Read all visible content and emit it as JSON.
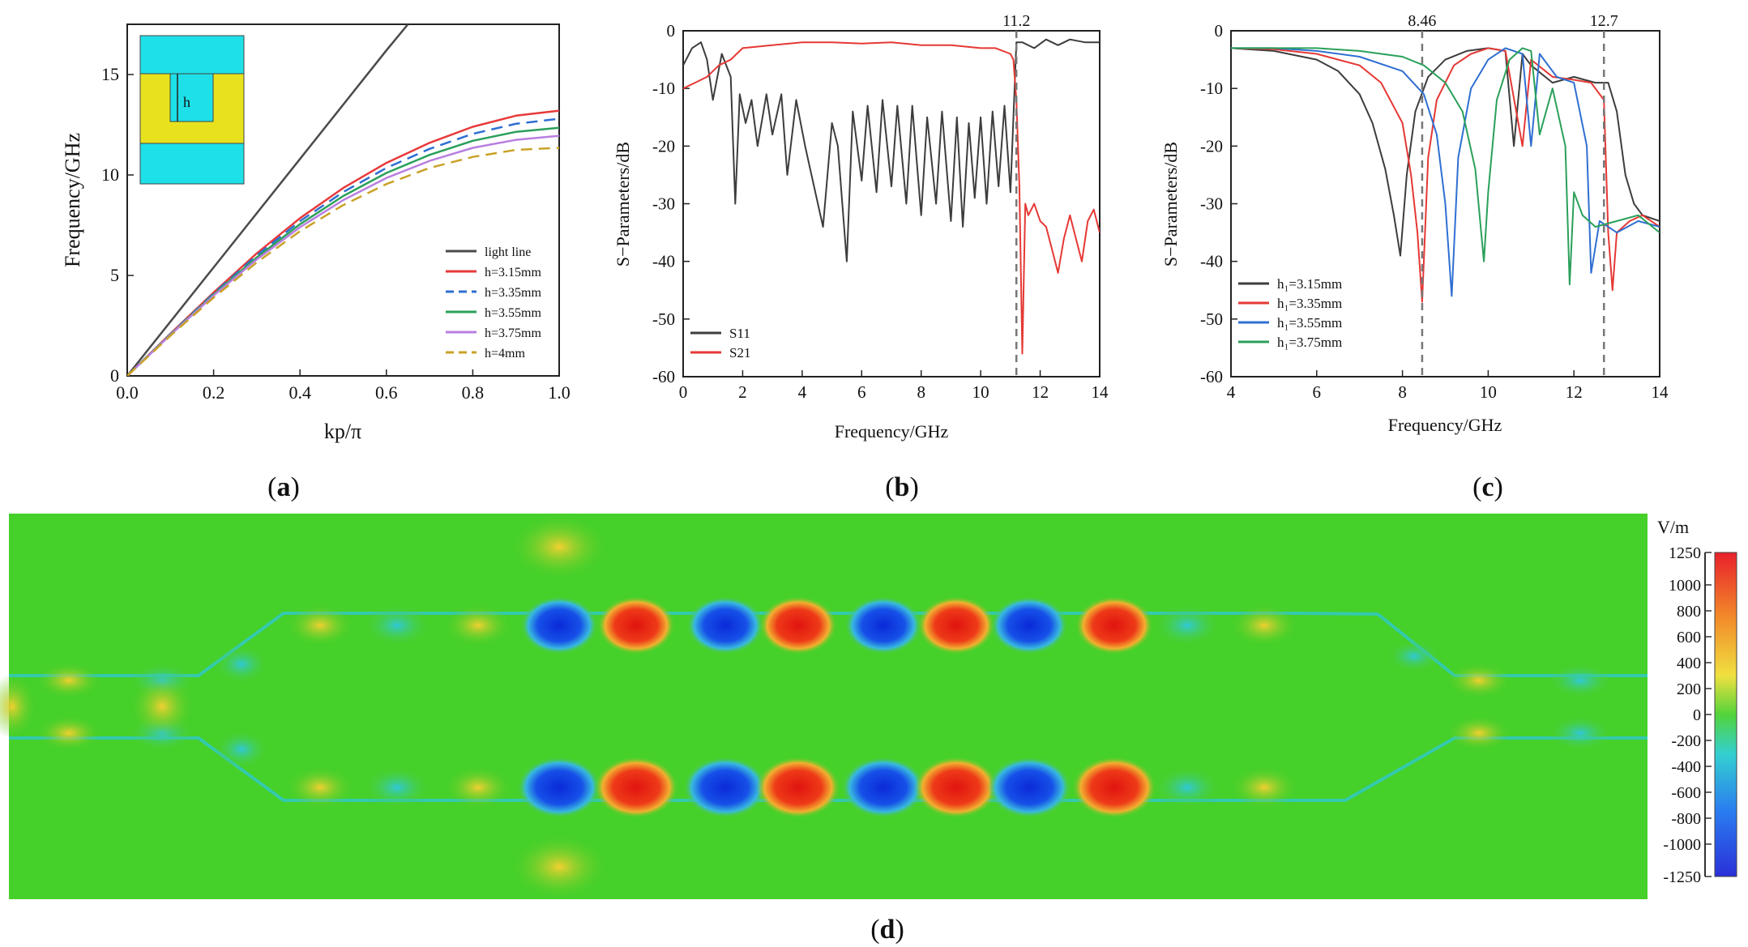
{
  "panel_labels": {
    "a": "a",
    "b": "b",
    "c": "c",
    "d": "d"
  },
  "colors": {
    "light_line": "#4a4a4a",
    "h315": "#e8393a",
    "h335": "#2f6fd1",
    "h355": "#2aa05a",
    "h375": "#b87fe0",
    "h4": "#c9a227",
    "s11": "#3d3d3d",
    "s21": "#e53935",
    "field_bg": "#3fcf2a",
    "inset_cyan": "#1ee0e8",
    "inset_yellow": "#e8e21e"
  },
  "chart_data": [
    {
      "type": "line",
      "panel": "a",
      "xlabel": "kp/π",
      "ylabel": "Frequency/GHz",
      "xlim": [
        0,
        1.0
      ],
      "ylim": [
        0,
        17.5
      ],
      "xticks": [
        "0.0",
        "0.2",
        "0.4",
        "0.6",
        "0.8",
        "1.0"
      ],
      "yticks": [
        "0",
        "5",
        "10",
        "15"
      ],
      "legend_position": "bottom-right",
      "inset_label": "h",
      "series": [
        {
          "name": "light line",
          "style": "solid",
          "x": [
            0,
            0.2,
            0.4,
            0.6,
            0.65
          ],
          "y": [
            0,
            5.4,
            10.8,
            16.2,
            17.5
          ]
        },
        {
          "name": "h=3.15mm",
          "style": "solid",
          "x": [
            0,
            0.1,
            0.2,
            0.3,
            0.4,
            0.5,
            0.6,
            0.7,
            0.8,
            0.9,
            1.0
          ],
          "y": [
            0,
            2.1,
            4.15,
            6.1,
            7.85,
            9.35,
            10.6,
            11.6,
            12.4,
            12.95,
            13.2
          ]
        },
        {
          "name": "h=3.35mm",
          "style": "dashed",
          "x": [
            0,
            0.1,
            0.2,
            0.3,
            0.4,
            0.5,
            0.6,
            0.7,
            0.8,
            0.9,
            1.0
          ],
          "y": [
            0,
            2.08,
            4.1,
            6.0,
            7.7,
            9.15,
            10.35,
            11.3,
            12.05,
            12.55,
            12.8
          ]
        },
        {
          "name": "h=3.55mm",
          "style": "solid",
          "x": [
            0,
            0.1,
            0.2,
            0.3,
            0.4,
            0.5,
            0.6,
            0.7,
            0.8,
            0.9,
            1.0
          ],
          "y": [
            0,
            2.06,
            4.05,
            5.9,
            7.55,
            8.95,
            10.1,
            11.0,
            11.7,
            12.15,
            12.35
          ]
        },
        {
          "name": "h=3.75mm",
          "style": "solid",
          "x": [
            0,
            0.1,
            0.2,
            0.3,
            0.4,
            0.5,
            0.6,
            0.7,
            0.8,
            0.9,
            1.0
          ],
          "y": [
            0,
            2.04,
            4.0,
            5.8,
            7.4,
            8.75,
            9.85,
            10.7,
            11.35,
            11.75,
            11.95
          ]
        },
        {
          "name": "h=4mm",
          "style": "dashed",
          "x": [
            0,
            0.1,
            0.2,
            0.3,
            0.4,
            0.5,
            0.6,
            0.7,
            0.8,
            0.9,
            1.0
          ],
          "y": [
            0,
            2.0,
            3.9,
            5.65,
            7.2,
            8.5,
            9.55,
            10.35,
            10.9,
            11.25,
            11.35
          ]
        }
      ]
    },
    {
      "type": "line",
      "panel": "b",
      "xlabel": "Frequency/GHz",
      "ylabel": "S−Parameters/dB",
      "xlim": [
        0,
        14
      ],
      "ylim": [
        -60,
        0
      ],
      "xticks": [
        "0",
        "2",
        "4",
        "6",
        "8",
        "10",
        "12",
        "14"
      ],
      "yticks": [
        "0",
        "-10",
        "-20",
        "-30",
        "-40",
        "-50",
        "-60"
      ],
      "vline": {
        "x": 11.2,
        "label": "11.2"
      },
      "legend_position": "bottom-left",
      "series": [
        {
          "name": "S11",
          "x": [
            0,
            0.3,
            0.6,
            0.8,
            1.0,
            1.3,
            1.6,
            1.75,
            1.9,
            2.1,
            2.3,
            2.5,
            2.8,
            3.0,
            3.3,
            3.5,
            3.8,
            4.1,
            4.4,
            4.7,
            5.0,
            5.2,
            5.5,
            5.7,
            6.0,
            6.2,
            6.5,
            6.7,
            7.0,
            7.2,
            7.5,
            7.7,
            8.0,
            8.2,
            8.5,
            8.7,
            9.0,
            9.2,
            9.4,
            9.6,
            9.8,
            10.0,
            10.2,
            10.4,
            10.6,
            10.8,
            11.0,
            11.2,
            11.4,
            11.8,
            12.2,
            12.6,
            13.0,
            13.5,
            14.0
          ],
          "y": [
            -6,
            -3,
            -2,
            -5,
            -12,
            -4,
            -8,
            -30,
            -11,
            -16,
            -12,
            -20,
            -11,
            -18,
            -11,
            -25,
            -12,
            -20,
            -27,
            -34,
            -16,
            -20,
            -40,
            -14,
            -26,
            -13,
            -28,
            -12,
            -27,
            -13,
            -30,
            -13,
            -32,
            -15,
            -30,
            -14,
            -33,
            -15,
            -34,
            -16,
            -29,
            -15,
            -30,
            -14,
            -27,
            -13,
            -28,
            -2,
            -2,
            -3,
            -1.5,
            -2.5,
            -1.5,
            -2,
            -2
          ]
        },
        {
          "name": "S21",
          "x": [
            0,
            0.4,
            0.8,
            1.2,
            1.6,
            2.0,
            3.0,
            4.0,
            5.0,
            6.0,
            7.0,
            8.0,
            9.0,
            10.0,
            10.5,
            11.0,
            11.1,
            11.2,
            11.3,
            11.4,
            11.5,
            11.6,
            11.8,
            12.0,
            12.2,
            12.4,
            12.6,
            12.8,
            13.0,
            13.2,
            13.4,
            13.6,
            13.8,
            14.0
          ],
          "y": [
            -10,
            -9,
            -8,
            -6,
            -5,
            -3,
            -2.5,
            -2,
            -2,
            -2.2,
            -2,
            -2.5,
            -2.5,
            -3,
            -3,
            -4,
            -5,
            -12,
            -27,
            -56,
            -30,
            -32,
            -30,
            -33,
            -34,
            -38,
            -42,
            -36,
            -32,
            -36,
            -40,
            -33,
            -31,
            -35
          ]
        }
      ]
    },
    {
      "type": "line",
      "panel": "c",
      "xlabel": "Frequency/GHz",
      "ylabel": "S−Parameters/dB",
      "xlim": [
        4,
        14
      ],
      "ylim": [
        -60,
        0
      ],
      "xticks": [
        "4",
        "6",
        "8",
        "10",
        "12",
        "14"
      ],
      "yticks": [
        "0",
        "-10",
        "-20",
        "-30",
        "-40",
        "-50",
        "-60"
      ],
      "vlines": [
        {
          "x": 8.46,
          "label": "8.46"
        },
        {
          "x": 12.7,
          "label": "12.7"
        }
      ],
      "legend_position": "bottom-left",
      "series": [
        {
          "name": "h₁=3.15mm",
          "x": [
            4,
            5,
            6,
            6.5,
            7,
            7.3,
            7.6,
            7.8,
            7.95,
            8.1,
            8.3,
            8.6,
            9.0,
            9.5,
            10.0,
            10.4,
            10.6,
            10.8,
            11.0,
            11.5,
            12.0,
            12.5,
            12.8,
            13.0,
            13.2,
            13.4,
            13.6,
            14.0
          ],
          "y": [
            -3,
            -3.5,
            -5,
            -7,
            -11,
            -16,
            -24,
            -32,
            -39,
            -25,
            -14,
            -8,
            -5,
            -3.5,
            -3,
            -3.5,
            -20,
            -4,
            -6,
            -9,
            -8,
            -9,
            -9,
            -14,
            -25,
            -30,
            -32,
            -33
          ]
        },
        {
          "name": "h₁=3.35mm",
          "x": [
            4,
            5,
            6,
            7,
            7.5,
            8.0,
            8.2,
            8.35,
            8.46,
            8.6,
            8.8,
            9.2,
            9.6,
            10.0,
            10.4,
            10.8,
            11.0,
            11.5,
            12.0,
            12.4,
            12.7,
            12.8,
            12.9,
            13.0,
            13.3,
            13.6,
            14.0
          ],
          "y": [
            -3,
            -3.2,
            -4,
            -6,
            -9,
            -16,
            -25,
            -35,
            -47,
            -22,
            -12,
            -6,
            -4,
            -3,
            -3.5,
            -20,
            -5,
            -8,
            -8.5,
            -9,
            -12,
            -35,
            -45,
            -35,
            -33,
            -32,
            -34
          ]
        },
        {
          "name": "h₁=3.55mm",
          "x": [
            4,
            5,
            6,
            7,
            8,
            8.5,
            8.8,
            9.0,
            9.15,
            9.3,
            9.6,
            10.0,
            10.4,
            10.8,
            11.0,
            11.2,
            11.6,
            12.0,
            12.3,
            12.4,
            12.6,
            13.0,
            13.5,
            14.0
          ],
          "y": [
            -3,
            -3,
            -3.5,
            -4.5,
            -7,
            -11,
            -18,
            -30,
            -46,
            -22,
            -10,
            -5,
            -3,
            -4,
            -20,
            -4,
            -8,
            -9,
            -20,
            -42,
            -33,
            -35,
            -33,
            -34
          ]
        },
        {
          "name": "h₁=3.75mm",
          "x": [
            4,
            5,
            6,
            7,
            8,
            8.5,
            9.0,
            9.4,
            9.7,
            9.9,
            10.0,
            10.2,
            10.5,
            10.8,
            11.0,
            11.2,
            11.5,
            11.8,
            11.9,
            12.0,
            12.2,
            12.5,
            13.0,
            13.5,
            14.0
          ],
          "y": [
            -3,
            -3,
            -3,
            -3.5,
            -4.5,
            -6,
            -9,
            -14,
            -24,
            -40,
            -28,
            -12,
            -5,
            -3,
            -3.5,
            -18,
            -10,
            -20,
            -44,
            -28,
            -32,
            -34,
            -33,
            -32,
            -35
          ]
        }
      ]
    },
    {
      "type": "heatmap",
      "panel": "d",
      "colorbar_title": "V/m",
      "colorbar_ticks": [
        "1250",
        "1000",
        "800",
        "600",
        "400",
        "200",
        "0",
        "-200",
        "-400",
        "-600",
        "-800",
        "-1000",
        "-1250"
      ],
      "range": [
        -1250,
        1250
      ]
    }
  ]
}
